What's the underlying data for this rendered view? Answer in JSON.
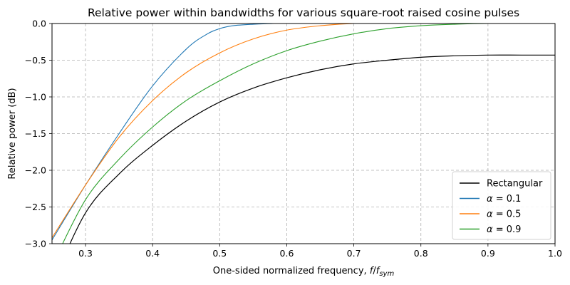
{
  "chart_data": {
    "type": "line",
    "title": "Relative power within bandwidths for various square-root raised cosine pulses",
    "xlabel_text": "One-sided normalized frequency, ",
    "xlabel_math": "f",
    "xlabel_sep": "/",
    "xlabel_math2": "f",
    "xlabel_sub": "sym",
    "ylabel": "Relative power (dB)",
    "xlim": [
      0.25,
      1.0
    ],
    "ylim": [
      -3.0,
      0.0
    ],
    "x_ticks": [
      0.3,
      0.4,
      0.5,
      0.6,
      0.7,
      0.8,
      0.9,
      1.0
    ],
    "x_tick_labels": [
      "0.3",
      "0.4",
      "0.5",
      "0.6",
      "0.7",
      "0.8",
      "0.9",
      "1.0"
    ],
    "y_ticks": [
      0.0,
      -0.5,
      -1.0,
      -1.5,
      -2.0,
      -2.5,
      -3.0
    ],
    "y_tick_labels": [
      "0.0",
      "−0.5",
      "−1.0",
      "−1.5",
      "−2.0",
      "−2.5",
      "−3.0"
    ],
    "grid": true,
    "legend_position": "lower-right",
    "series": [
      {
        "name": "Rectangular",
        "legend_math": false,
        "color": "#000000",
        "x": [
          0.25,
          0.3,
          0.35,
          0.4,
          0.45,
          0.5,
          0.55,
          0.6,
          0.65,
          0.7,
          0.75,
          0.8,
          0.85,
          0.9,
          0.95,
          1.0
        ],
        "y": [
          -3.55,
          -2.58,
          -2.05,
          -1.66,
          -1.33,
          -1.07,
          -0.88,
          -0.74,
          -0.63,
          -0.55,
          -0.5,
          -0.46,
          -0.44,
          -0.43,
          -0.43,
          -0.43
        ]
      },
      {
        "name": "α = 0.1",
        "legend_prefix": "α",
        "legend_suffix": " = 0.1",
        "legend_math": true,
        "color": "#1f77b4",
        "x": [
          0.25,
          0.3,
          0.35,
          0.4,
          0.45,
          0.48,
          0.5,
          0.52,
          0.55,
          0.58,
          0.62,
          0.7,
          1.0
        ],
        "y": [
          -2.95,
          -2.2,
          -1.5,
          -0.85,
          -0.35,
          -0.15,
          -0.07,
          -0.03,
          -0.01,
          0.0,
          0.0,
          0.0,
          0.0
        ]
      },
      {
        "name": "α = 0.5",
        "legend_prefix": "α",
        "legend_suffix": " = 0.5",
        "legend_math": true,
        "color": "#ff7f0e",
        "x": [
          0.25,
          0.3,
          0.35,
          0.4,
          0.45,
          0.5,
          0.55,
          0.6,
          0.65,
          0.7,
          0.75,
          1.0
        ],
        "y": [
          -2.92,
          -2.2,
          -1.55,
          -1.05,
          -0.67,
          -0.4,
          -0.21,
          -0.09,
          -0.03,
          0.0,
          0.0,
          0.0
        ]
      },
      {
        "name": "α = 0.9",
        "legend_prefix": "α",
        "legend_suffix": " = 0.9",
        "legend_math": true,
        "color": "#2ca02c",
        "x": [
          0.25,
          0.3,
          0.35,
          0.4,
          0.45,
          0.5,
          0.55,
          0.6,
          0.65,
          0.7,
          0.75,
          0.8,
          0.85,
          0.9,
          1.0
        ],
        "y": [
          -3.3,
          -2.4,
          -1.85,
          -1.41,
          -1.05,
          -0.78,
          -0.55,
          -0.37,
          -0.24,
          -0.14,
          -0.07,
          -0.03,
          -0.01,
          0.0,
          0.0
        ]
      }
    ]
  }
}
